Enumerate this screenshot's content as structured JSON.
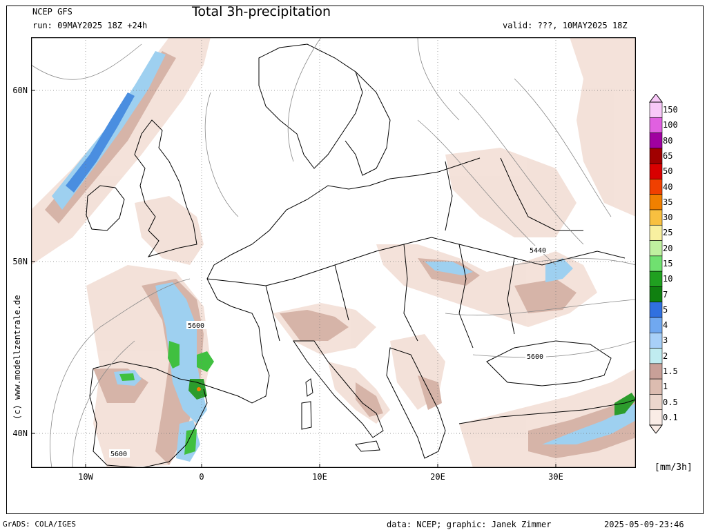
{
  "header": {
    "model": "NCEP GFS",
    "run": "run: 09MAY2025 18Z +24h",
    "title": "Total 3h-precipitation",
    "valid": "valid: ???, 10MAY2025 18Z"
  },
  "map": {
    "lat_labels": [
      "60N",
      "50N",
      "40N"
    ],
    "lon_labels": [
      "10W",
      "0",
      "10E",
      "20E",
      "30E"
    ],
    "contour_labels": [
      "5600",
      "5440",
      "5600",
      "5600"
    ],
    "side_text": "(c) www.modellzentrale.de"
  },
  "colorbar": {
    "unit": "[mm/3h]",
    "levels": [
      "150",
      "100",
      "80",
      "65",
      "50",
      "40",
      "35",
      "30",
      "25",
      "20",
      "15",
      "10",
      "7",
      "5",
      "4",
      "3",
      "2",
      "1.5",
      "1",
      "0.5",
      "0.1"
    ],
    "colors": [
      "#f8c8f8",
      "#e060e0",
      "#a000a0",
      "#a00000",
      "#d80000",
      "#f04000",
      "#f08000",
      "#f8c040",
      "#f8f0a0",
      "#c0f0a0",
      "#70e070",
      "#20a020",
      "#108010",
      "#3070e0",
      "#70a8f0",
      "#a8d0f8",
      "#c0ecf0",
      "#c8a098",
      "#dcbcb0",
      "#ecd6cc",
      "#faece6"
    ]
  },
  "footer": {
    "left": "GrADS: COLA/IGES",
    "center": "data: NCEP; graphic: Janek Zimmer",
    "right": "2025-05-09-23:46"
  }
}
